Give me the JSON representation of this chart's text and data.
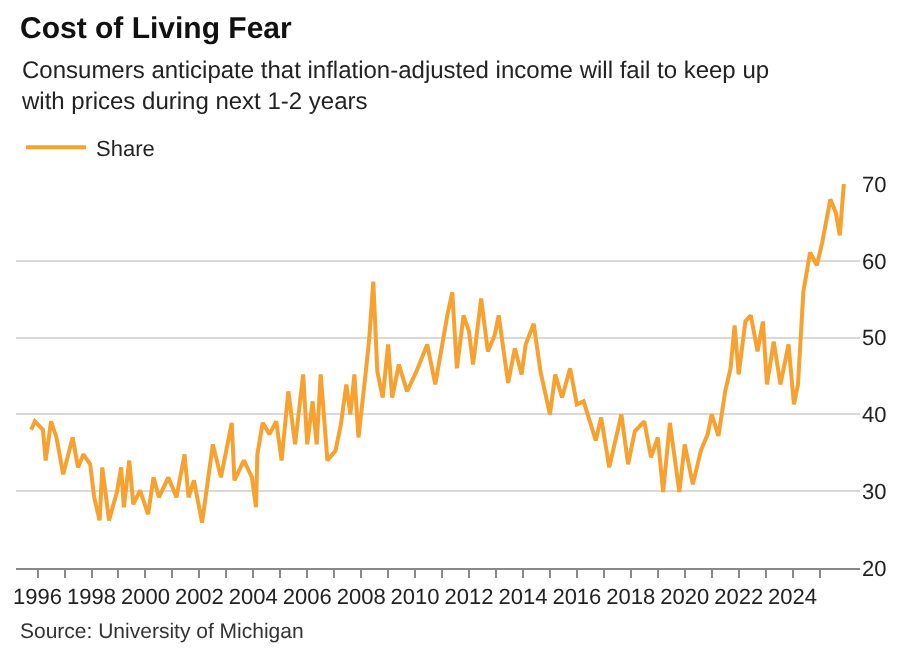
{
  "chart_data": {
    "type": "line",
    "title": "Cost of Living Fear",
    "subtitle": "Consumers anticipate that inflation-adjusted income will fail to keep up with prices during next 1-2 years",
    "x": [
      1995.76,
      1995.9,
      1996.2,
      1996.3,
      1996.5,
      1996.7,
      1996.95,
      1997.3,
      1997.5,
      1997.7,
      1997.95,
      1998.1,
      1998.3,
      1998.4,
      1998.65,
      1998.95,
      1999.1,
      1999.2,
      1999.4,
      1999.55,
      1999.8,
      2000.1,
      2000.3,
      2000.5,
      2000.85,
      2001.15,
      2001.45,
      2001.6,
      2001.8,
      2002.1,
      2002.5,
      2002.8,
      2003.2,
      2003.3,
      2003.65,
      2003.95,
      2004.1,
      2004.15,
      2004.35,
      2004.6,
      2004.85,
      2005.05,
      2005.3,
      2005.55,
      2005.85,
      2006.0,
      2006.2,
      2006.35,
      2006.5,
      2006.75,
      2007.05,
      2007.25,
      2007.45,
      2007.6,
      2007.75,
      2007.9,
      2008.15,
      2008.3,
      2008.45,
      2008.6,
      2008.8,
      2009.0,
      2009.15,
      2009.4,
      2009.7,
      2010.05,
      2010.45,
      2010.75,
      2011.2,
      2011.38,
      2011.55,
      2011.8,
      2012.0,
      2012.15,
      2012.45,
      2012.7,
      2012.95,
      2013.1,
      2013.45,
      2013.7,
      2013.95,
      2014.1,
      2014.4,
      2014.65,
      2015.0,
      2015.2,
      2015.45,
      2015.75,
      2016.0,
      2016.25,
      2016.7,
      2016.9,
      2017.2,
      2017.65,
      2017.9,
      2018.15,
      2018.5,
      2018.75,
      2019.0,
      2019.2,
      2019.45,
      2019.8,
      2020.0,
      2020.3,
      2020.6,
      2020.85,
      2021.0,
      2021.25,
      2021.5,
      2021.7,
      2021.85,
      2022.0,
      2022.25,
      2022.45,
      2022.7,
      2022.9,
      2023.05,
      2023.3,
      2023.55,
      2023.85,
      2024.05,
      2024.2,
      2024.4,
      2024.65,
      2024.9,
      2025.1,
      2025.4,
      2025.6,
      2025.75,
      2025.9
    ],
    "series": [
      {
        "name": "Share",
        "color": "#f7a131",
        "values": [
          38.0,
          39.1,
          38.0,
          34.0,
          39.1,
          37.0,
          32.2,
          37.0,
          33.1,
          34.8,
          33.5,
          29.2,
          26.2,
          33.1,
          26.2,
          30.0,
          33.1,
          27.9,
          34.0,
          28.3,
          30.1,
          27.0,
          31.8,
          29.2,
          31.8,
          29.2,
          34.8,
          29.2,
          31.4,
          25.9,
          36.1,
          31.8,
          38.9,
          31.4,
          34.0,
          31.8,
          27.9,
          34.8,
          38.9,
          37.4,
          39.1,
          34.0,
          43.0,
          36.1,
          45.2,
          36.1,
          41.7,
          36.1,
          45.2,
          34.0,
          35.3,
          38.7,
          43.9,
          40.0,
          45.2,
          37.0,
          44.8,
          49.9,
          57.3,
          45.6,
          42.2,
          49.1,
          42.2,
          46.5,
          43.0,
          45.6,
          49.1,
          43.9,
          53.0,
          55.9,
          46.0,
          52.9,
          50.8,
          46.5,
          55.1,
          48.2,
          50.3,
          52.9,
          44.1,
          48.6,
          45.2,
          49.1,
          51.8,
          45.6,
          40.0,
          45.2,
          42.2,
          46.0,
          41.3,
          41.7,
          36.6,
          39.6,
          33.1,
          40.0,
          33.5,
          37.8,
          39.1,
          34.4,
          37.0,
          29.9,
          38.9,
          29.9,
          36.1,
          30.9,
          35.3,
          37.4,
          40.0,
          37.2,
          43.0,
          46.0,
          51.6,
          45.2,
          52.1,
          52.9,
          48.2,
          52.1,
          43.9,
          49.5,
          43.9,
          49.1,
          41.3,
          43.9,
          56.0,
          61.1,
          59.4,
          62.4,
          68.0,
          66.3,
          63.3,
          70.0
        ]
      }
    ],
    "xlim": [
      1995.2,
      2026.5
    ],
    "xticks": [
      1996,
      {
        "value": 1997,
        "label": null
      },
      1998,
      {
        "value": 1999,
        "label": null
      },
      2000,
      {
        "value": 2001,
        "label": null
      },
      2002,
      {
        "value": 2003,
        "label": null
      },
      2004,
      {
        "value": 2005,
        "label": null
      },
      2006,
      {
        "value": 2007,
        "label": null
      },
      2008,
      {
        "value": 2009,
        "label": null
      },
      2010,
      {
        "value": 2011,
        "label": null
      },
      2012,
      {
        "value": 2013,
        "label": null
      },
      2014,
      {
        "value": 2015,
        "label": null
      },
      2016,
      {
        "value": 2017,
        "label": null
      },
      2018,
      {
        "value": 2019,
        "label": null
      },
      2020,
      {
        "value": 2021,
        "label": null
      },
      2022,
      {
        "value": 2023,
        "label": null
      },
      2024,
      {
        "value": 2025,
        "label": null
      }
    ],
    "ylim": [
      20,
      70
    ],
    "yticks": [
      20,
      30,
      40,
      50,
      60,
      70
    ],
    "grid": "y",
    "legend": "top left",
    "annotations": [
      "Source: University of Michigan"
    ]
  }
}
